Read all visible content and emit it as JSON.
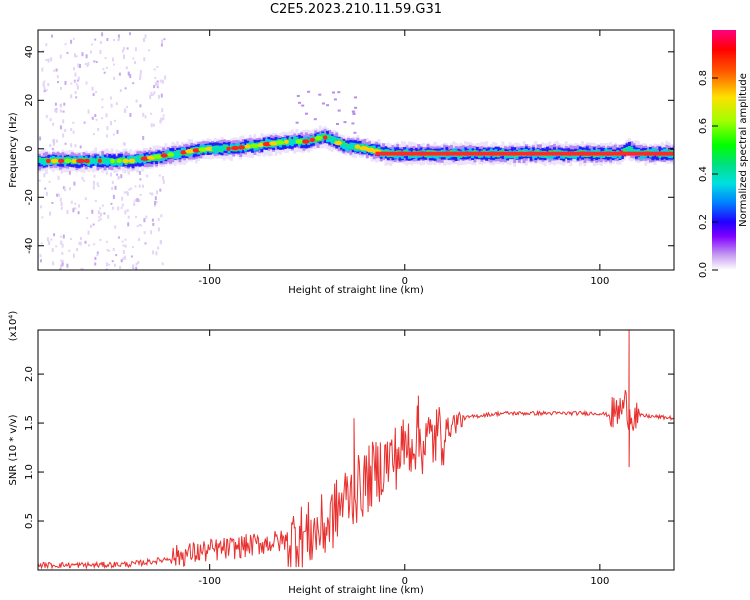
{
  "title": "C2E5.2023.210.11.59.G31",
  "chart_data": [
    {
      "type": "heatmap",
      "xlabel": "Height of straight line (km)",
      "ylabel": "Frequency (Hz)",
      "xlim": [
        -188,
        138
      ],
      "ylim": [
        -50,
        49
      ],
      "xticks": [
        -100,
        0,
        100
      ],
      "yticks": [
        -40,
        -20,
        0,
        20,
        40
      ],
      "ridge_x": [
        -188,
        -160,
        -140,
        -125,
        -110,
        -100,
        -90,
        -80,
        -70,
        -60,
        -50,
        -42,
        -36,
        -30,
        -25,
        -20,
        -15,
        -10,
        0,
        20,
        40,
        60,
        80,
        100,
        110,
        114,
        120,
        138
      ],
      "ridge_y": [
        -5,
        -5,
        -5,
        -3,
        -1,
        0,
        0,
        1,
        2,
        3,
        3,
        5,
        3,
        1,
        1,
        0,
        -1,
        -2,
        -2,
        -2,
        -2,
        -2,
        -2,
        -2,
        -2,
        0,
        -2,
        -2
      ],
      "colorbar": {
        "label": "Normalized spectral amplitude",
        "range": [
          0,
          1
        ],
        "ticks": [
          "0.0",
          "0.2",
          "0.4",
          "0.6",
          "0.8"
        ],
        "tick_values": [
          0.0,
          0.2,
          0.4,
          0.6,
          0.8
        ]
      }
    },
    {
      "type": "line",
      "xlabel": "Height of straight line (km)",
      "ylabel": "SNR (10 * v/v)",
      "multiplier": "(x10⁴)",
      "xlim": [
        -188,
        138
      ],
      "ylim": [
        0,
        2.45
      ],
      "xticks": [
        -100,
        0,
        100
      ],
      "yticks": [
        "0.5",
        "1.0",
        "1.5",
        "2.0"
      ],
      "ytick_values": [
        0.5,
        1.0,
        1.5,
        2.0
      ],
      "color": "#e8312f",
      "series": [
        {
          "x": [
            -188,
            -160,
            -140,
            -125,
            -115,
            -100,
            -90,
            -80,
            -70,
            -60,
            -50,
            -40,
            -35,
            -30,
            -25,
            -20,
            -15,
            -10,
            -5,
            0,
            5,
            10,
            15,
            20,
            25,
            30,
            40,
            50,
            60,
            70,
            80,
            90,
            100,
            105,
            110,
            113,
            115,
            118,
            125,
            138
          ],
          "y": [
            0.05,
            0.05,
            0.06,
            0.1,
            0.15,
            0.2,
            0.22,
            0.25,
            0.28,
            0.3,
            0.35,
            0.45,
            0.6,
            0.75,
            0.8,
            0.9,
            1.0,
            1.1,
            1.15,
            1.25,
            1.35,
            1.3,
            1.35,
            1.4,
            1.5,
            1.55,
            1.58,
            1.6,
            1.6,
            1.6,
            1.6,
            1.6,
            1.6,
            1.58,
            1.62,
            1.7,
            1.6,
            1.58,
            1.57,
            1.55
          ]
        }
      ],
      "peaks": [
        {
          "x": -26,
          "y": 1.55
        },
        {
          "x": 7,
          "y": 1.78
        },
        {
          "x": 115,
          "y": 2.45
        },
        {
          "x": 115,
          "y": 1.05
        }
      ]
    }
  ]
}
